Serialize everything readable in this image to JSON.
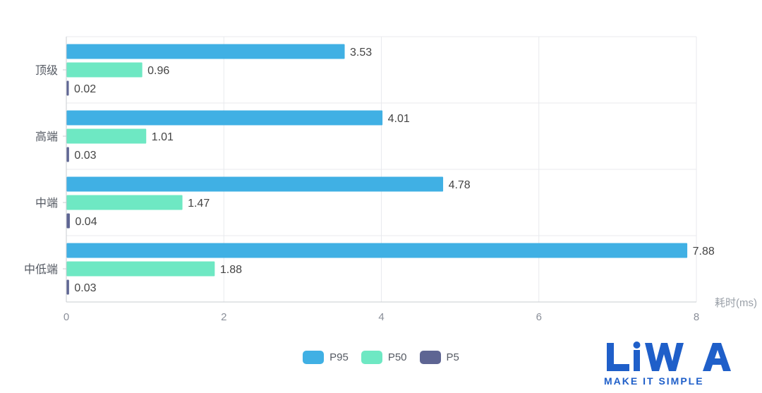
{
  "chart_data": {
    "type": "bar",
    "orientation": "horizontal",
    "categories": [
      "顶级",
      "高端",
      "中端",
      "中低端"
    ],
    "series": [
      {
        "name": "P95",
        "color": "#40b0e4",
        "values": [
          3.53,
          4.01,
          4.78,
          7.88
        ]
      },
      {
        "name": "P50",
        "color": "#6ee8c3",
        "values": [
          0.96,
          1.01,
          1.47,
          1.88
        ]
      },
      {
        "name": "P5",
        "color": "#5e6593",
        "values": [
          0.02,
          0.03,
          0.04,
          0.03
        ]
      }
    ],
    "x_ticks": [
      "0",
      "2",
      "4",
      "6",
      "8"
    ],
    "xlim": [
      0,
      8
    ],
    "xlabel": "耗时(ms)",
    "grid": true,
    "legend_position": "bottom"
  },
  "watermark": {
    "logo_text": "LiWA",
    "sub_text": "MAKE IT SIMPLE",
    "color": "#1f5fc9"
  }
}
